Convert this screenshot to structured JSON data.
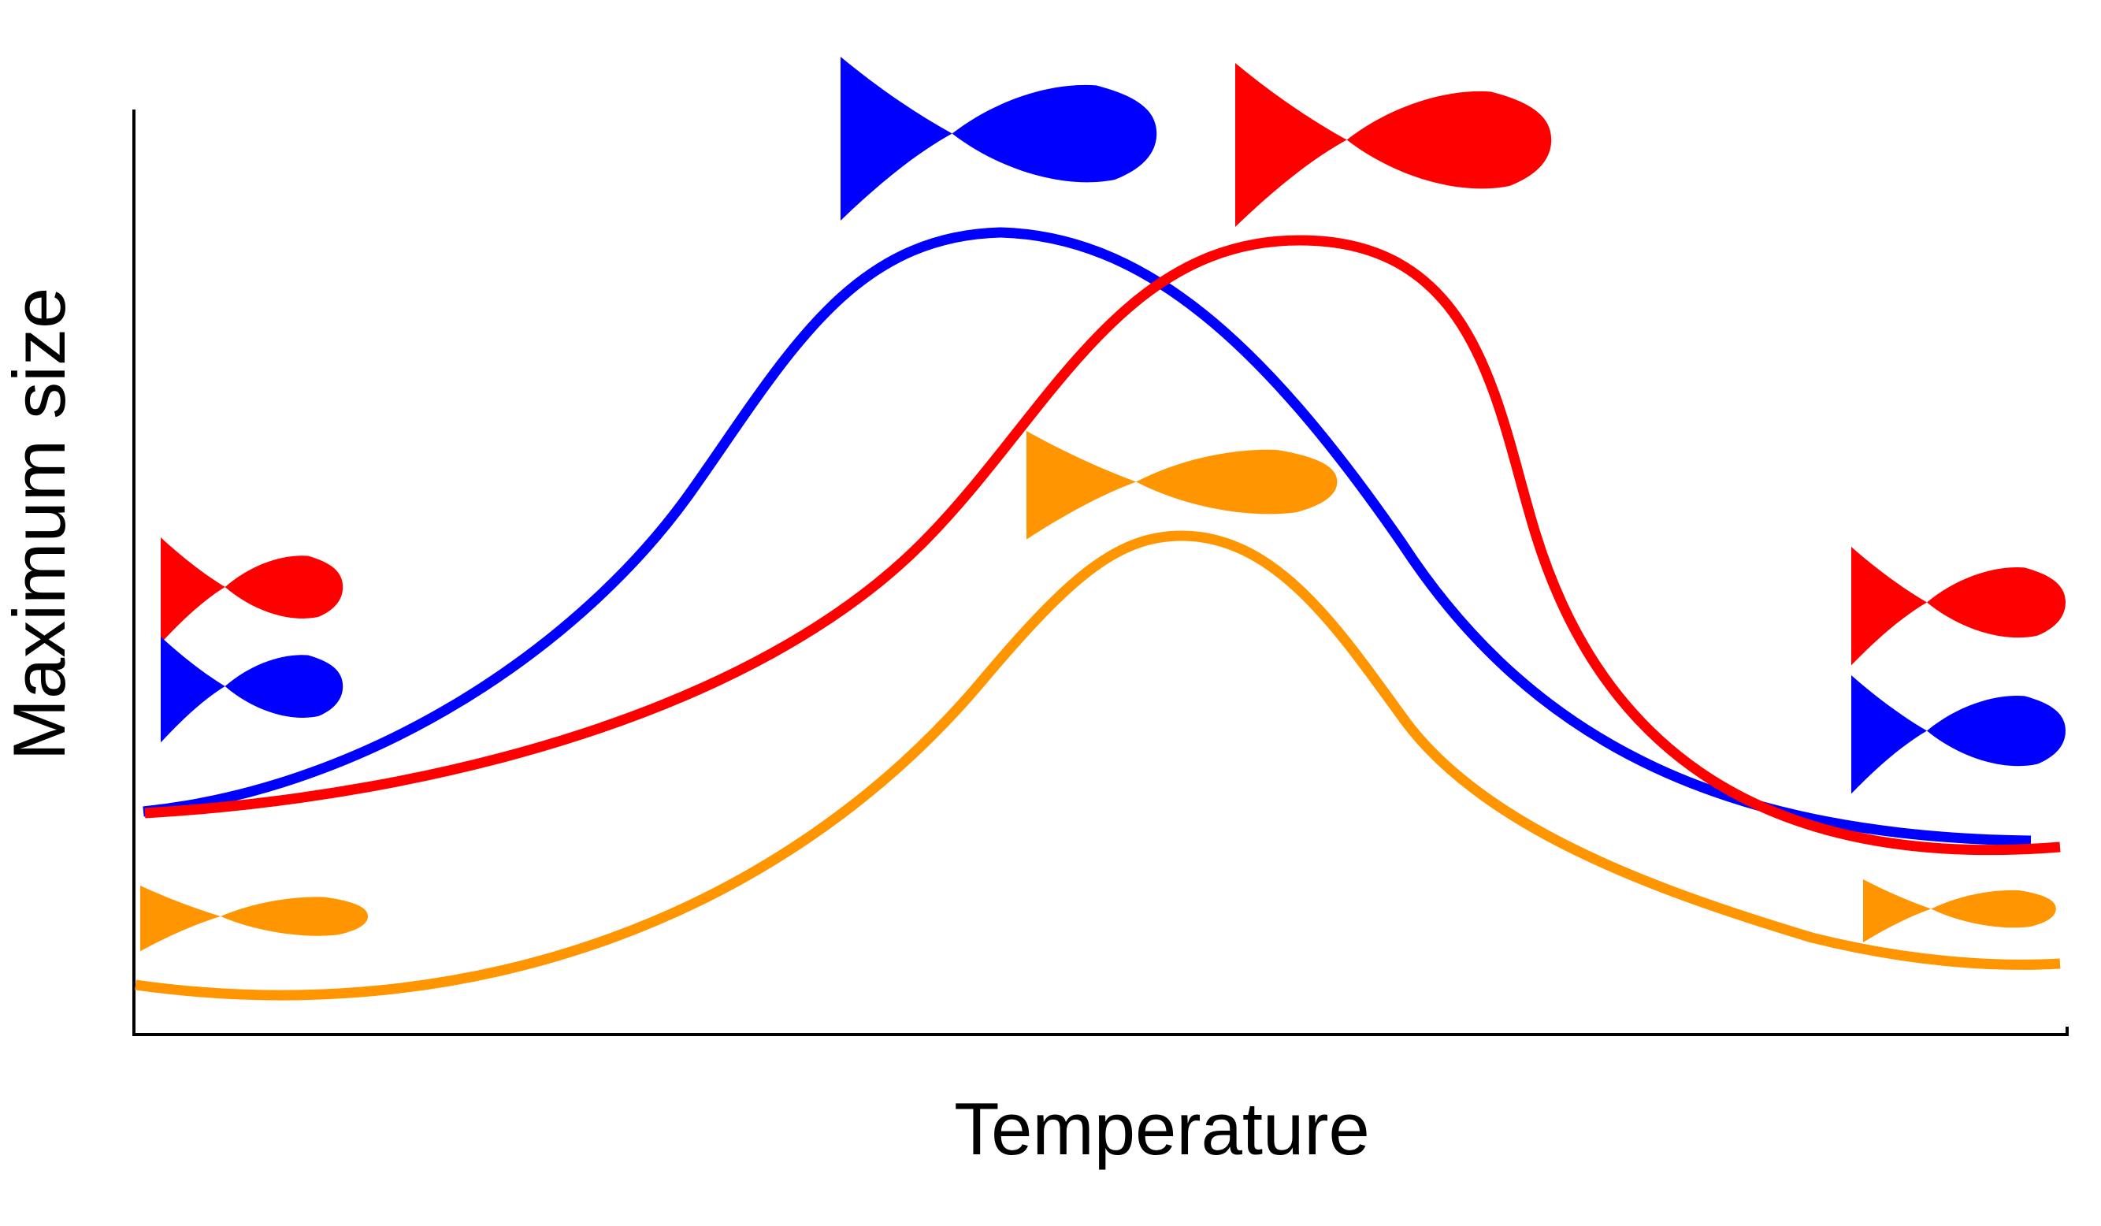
{
  "chart_data": {
    "type": "line",
    "title": "",
    "xlabel": "Temperature",
    "ylabel": "Maximum size",
    "grid": false,
    "legend": "none",
    "x_ticks": false,
    "y_ticks": false,
    "x": [
      0,
      0.1,
      0.2,
      0.3,
      0.4,
      0.45,
      0.5,
      0.55,
      0.6,
      0.65,
      0.7,
      0.8,
      0.9,
      1.0
    ],
    "xlim": [
      0,
      1
    ],
    "ylim": [
      0,
      1
    ],
    "series": [
      {
        "color": "#0000ff",
        "values": [
          0.24,
          0.34,
          0.55,
          0.8,
          0.87,
          0.86,
          0.79,
          0.65,
          0.48,
          0.37,
          0.29,
          0.2,
          0.16,
          0.15
        ]
      },
      {
        "color": "#ff0000",
        "values": [
          0.24,
          0.26,
          0.33,
          0.44,
          0.6,
          0.71,
          0.8,
          0.86,
          0.87,
          0.8,
          0.6,
          0.3,
          0.18,
          0.15
        ]
      },
      {
        "color": "#ff9500",
        "values": [
          0.05,
          0.05,
          0.13,
          0.24,
          0.42,
          0.51,
          0.54,
          0.51,
          0.4,
          0.3,
          0.24,
          0.16,
          0.1,
          0.08
        ]
      }
    ],
    "fish_markers": [
      {
        "color": "#0000ff",
        "region": "peak",
        "size": "large"
      },
      {
        "color": "#ff0000",
        "region": "peak",
        "size": "large"
      },
      {
        "color": "#ff9500",
        "region": "peak",
        "size": "large"
      },
      {
        "color": "#ff0000",
        "region": "low-temperature",
        "size": "small"
      },
      {
        "color": "#0000ff",
        "region": "low-temperature",
        "size": "small"
      },
      {
        "color": "#ff9500",
        "region": "low-temperature",
        "size": "small"
      },
      {
        "color": "#ff0000",
        "region": "high-temperature",
        "size": "small"
      },
      {
        "color": "#0000ff",
        "region": "high-temperature",
        "size": "small"
      },
      {
        "color": "#ff9500",
        "region": "high-temperature",
        "size": "small"
      }
    ]
  },
  "icons": {
    "fish": "fish-icon"
  }
}
